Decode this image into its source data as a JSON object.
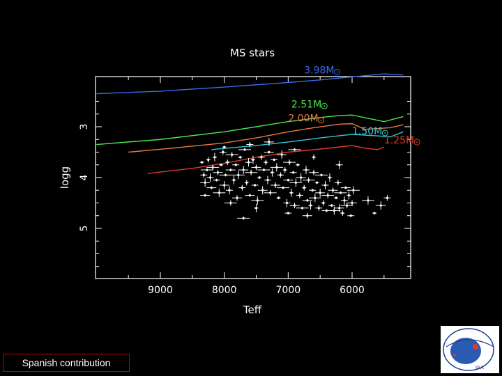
{
  "chart_data": {
    "type": "scatter",
    "title": "MS stars",
    "xlabel": "Teff",
    "ylabel": "logg",
    "xlim": [
      10000,
      5000
    ],
    "ylim": [
      6,
      3.9
    ],
    "x_ticks": [
      {
        "value": 9000,
        "label": "9000"
      },
      {
        "value": 8000,
        "label": "8000"
      },
      {
        "value": 7000,
        "label": "7000"
      },
      {
        "value": 6000,
        "label": "6000"
      }
    ],
    "y_ticks": [
      {
        "value": 3,
        "label": "3"
      },
      {
        "value": 4,
        "label": "4"
      },
      {
        "value": 5,
        "label": "5"
      }
    ],
    "grid": false,
    "tracks": [
      {
        "name": "3.98M",
        "color": "#3a6ae8",
        "x": [
          10000,
          9000,
          8000,
          7000,
          6500,
          6000,
          5500,
          5200
        ],
        "y": [
          2.35,
          2.3,
          2.22,
          2.13,
          2.08,
          2.02,
          1.96,
          1.98
        ]
      },
      {
        "name": "2.51M",
        "color": "#4ce84c",
        "x": [
          10000,
          9000,
          8000,
          7500,
          7000,
          6500,
          6200,
          6000,
          5500,
          5200
        ],
        "y": [
          3.35,
          3.25,
          3.1,
          3.0,
          2.9,
          2.82,
          2.78,
          2.77,
          2.9,
          2.8
        ]
      },
      {
        "name": "2.00M",
        "color": "#e87a3c",
        "x": [
          9500,
          8800,
          8000,
          7500,
          7000,
          6600,
          6200,
          6000,
          5800,
          5400,
          5200
        ],
        "y": [
          3.5,
          3.42,
          3.32,
          3.22,
          3.1,
          3.02,
          2.95,
          2.94,
          3.05,
          3.02,
          2.96
        ]
      },
      {
        "name": "1.50M",
        "color": "#31c8d8",
        "x": [
          8200,
          7500,
          7000,
          6500,
          6000,
          5600,
          5400,
          5200
        ],
        "y": [
          3.45,
          3.37,
          3.3,
          3.22,
          3.15,
          3.18,
          3.2,
          3.1
        ]
      },
      {
        "name": "1.25M",
        "color": "#e03a2a",
        "x": [
          9200,
          8500,
          8000,
          7500,
          7000,
          6500,
          6000,
          5800,
          5600,
          5500
        ],
        "y": [
          3.92,
          3.82,
          3.72,
          3.6,
          3.5,
          3.44,
          3.37,
          3.42,
          3.45,
          3.4
        ]
      }
    ],
    "annotations": [
      {
        "text": "3.98M",
        "color": "#3a6ae8",
        "x": 6750,
        "y": 1.95
      },
      {
        "text": "2.51M",
        "color": "#4ce84c",
        "x": 6950,
        "y": 2.62
      },
      {
        "text": "2.00M",
        "color": "#e87a3c",
        "x": 7000,
        "y": 2.9
      },
      {
        "text": "1.50M",
        "color": "#31c8d8",
        "x": 6000,
        "y": 3.15
      },
      {
        "text": "1.25M",
        "color": "#e03a2a",
        "x": 5500,
        "y": 3.33
      }
    ],
    "stars": {
      "color": "#ffffff",
      "generator_note": "dense cloud between Teff 8400-5800, logg 3.4-4.6",
      "points": [
        [
          8350,
          3.7
        ],
        [
          8320,
          3.95
        ],
        [
          8300,
          4.1
        ],
        [
          8270,
          3.85
        ],
        [
          8250,
          3.65
        ],
        [
          8220,
          4.0
        ],
        [
          8200,
          4.2
        ],
        [
          8180,
          3.8
        ],
        [
          8150,
          3.6
        ],
        [
          8120,
          4.05
        ],
        [
          8100,
          3.9
        ],
        [
          8080,
          4.3
        ],
        [
          8050,
          3.75
        ],
        [
          8020,
          3.5
        ],
        [
          8000,
          4.15
        ],
        [
          7980,
          3.95
        ],
        [
          7950,
          3.7
        ],
        [
          7920,
          4.25
        ],
        [
          7900,
          3.85
        ],
        [
          7880,
          3.55
        ],
        [
          7850,
          4.05
        ],
        [
          7820,
          3.75
        ],
        [
          7800,
          4.4
        ],
        [
          7780,
          3.95
        ],
        [
          7750,
          3.6
        ],
        [
          7720,
          4.2
        ],
        [
          7700,
          3.85
        ],
        [
          7680,
          3.45
        ],
        [
          7650,
          4.1
        ],
        [
          7620,
          3.7
        ],
        [
          7600,
          4.35
        ],
        [
          7580,
          3.9
        ],
        [
          7550,
          3.65
        ],
        [
          7520,
          4.15
        ],
        [
          7500,
          3.8
        ],
        [
          7480,
          4.45
        ],
        [
          7450,
          4.0
        ],
        [
          7420,
          3.6
        ],
        [
          7400,
          4.25
        ],
        [
          7380,
          3.85
        ],
        [
          7350,
          3.7
        ],
        [
          7320,
          4.05
        ],
        [
          7300,
          3.5
        ],
        [
          7280,
          4.3
        ],
        [
          7250,
          3.9
        ],
        [
          7220,
          3.65
        ],
        [
          7200,
          4.15
        ],
        [
          7180,
          3.8
        ],
        [
          7150,
          4.4
        ],
        [
          7120,
          3.95
        ],
        [
          7100,
          3.55
        ],
        [
          7080,
          4.2
        ],
        [
          7050,
          3.85
        ],
        [
          7020,
          4.5
        ],
        [
          7000,
          4.05
        ],
        [
          6980,
          3.7
        ],
        [
          6950,
          4.3
        ],
        [
          6920,
          3.9
        ],
        [
          6900,
          4.55
        ],
        [
          6880,
          4.1
        ],
        [
          6850,
          3.75
        ],
        [
          6820,
          4.35
        ],
        [
          6800,
          4.0
        ],
        [
          6780,
          4.6
        ],
        [
          6750,
          4.2
        ],
        [
          6720,
          3.85
        ],
        [
          6700,
          4.45
        ],
        [
          6680,
          4.05
        ],
        [
          6650,
          4.55
        ],
        [
          6620,
          4.25
        ],
        [
          6600,
          3.9
        ],
        [
          6580,
          4.4
        ],
        [
          6550,
          4.1
        ],
        [
          6520,
          4.6
        ],
        [
          6500,
          4.3
        ],
        [
          6480,
          3.95
        ],
        [
          6450,
          4.5
        ],
        [
          6420,
          4.15
        ],
        [
          6400,
          4.65
        ],
        [
          6380,
          4.35
        ],
        [
          6350,
          4.0
        ],
        [
          6320,
          4.55
        ],
        [
          6300,
          4.25
        ],
        [
          6280,
          4.65
        ],
        [
          6250,
          4.4
        ],
        [
          6220,
          4.1
        ],
        [
          6200,
          4.6
        ],
        [
          6180,
          4.3
        ],
        [
          6150,
          4.7
        ],
        [
          6120,
          4.45
        ],
        [
          6100,
          4.2
        ],
        [
          6080,
          4.55
        ],
        [
          6050,
          4.35
        ],
        [
          6020,
          4.75
        ],
        [
          6000,
          4.5
        ],
        [
          5980,
          4.25
        ],
        [
          8000,
          3.4
        ],
        [
          7600,
          3.35
        ],
        [
          7300,
          3.3
        ],
        [
          6900,
          3.45
        ],
        [
          6600,
          3.6
        ],
        [
          6200,
          3.75
        ],
        [
          8300,
          4.35
        ],
        [
          7900,
          4.5
        ],
        [
          7500,
          4.6
        ],
        [
          7000,
          4.7
        ],
        [
          6700,
          4.75
        ],
        [
          5750,
          4.45
        ],
        [
          5650,
          4.7
        ],
        [
          5450,
          4.4
        ],
        [
          5550,
          4.55
        ],
        [
          7700,
          4.8
        ]
      ]
    }
  },
  "footer": {
    "label": "Spanish contribution",
    "logo_text": "INSTITUTO DE ASTROFISICA DE ANDALUCIA",
    "logo_abbr": "IAA"
  }
}
